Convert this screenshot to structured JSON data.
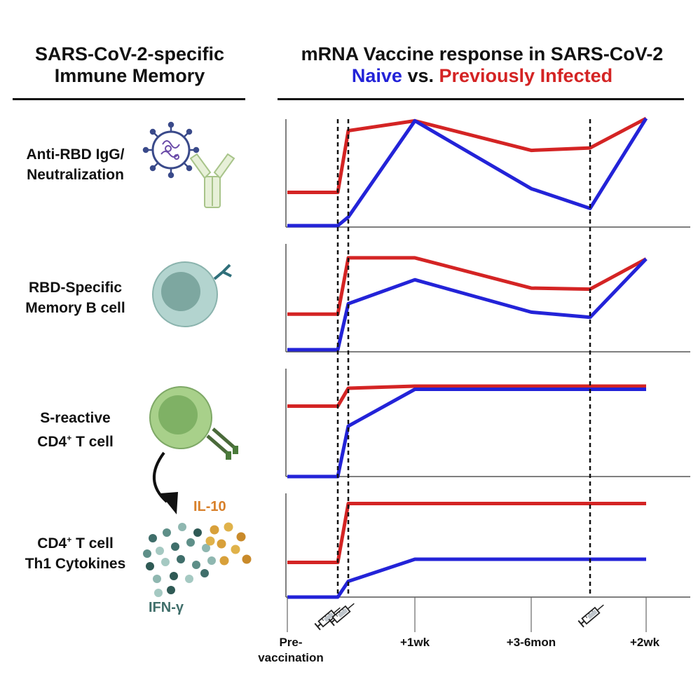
{
  "header": {
    "left_title_line1": "SARS-CoV-2-specific",
    "left_title_line2": "Immune Memory",
    "right_title": "mRNA Vaccine response in SARS-CoV-2",
    "naive": "Naive",
    "vs": " vs. ",
    "previously_infected": "Previously Infected"
  },
  "rows": [
    {
      "line1": "Anti-RBD IgG/",
      "line2": "Neutralization"
    },
    {
      "line1": "RBD-Specific",
      "line2": "Memory B cell"
    },
    {
      "line1": "S-reactive",
      "line2": "CD4",
      "line2_sup": "+",
      "line2_rest": " T cell"
    },
    {
      "line1": "CD4",
      "line1_sup": "+",
      "line1_rest": " T cell",
      "line2": "Th1 Cytokines"
    }
  ],
  "cytokines": {
    "il10": "IL-10",
    "ifng": "IFN-γ"
  },
  "x_ticks": {
    "pre_line1": "Pre-",
    "pre_line2": "vaccination",
    "wk1": "+1wk",
    "mon": "+3-6mon",
    "wk2": "+2wk"
  },
  "colors": {
    "naive": "#2323d8",
    "previously_infected": "#d42424",
    "il10": "#d8802a",
    "ifng": "#3f6e6a"
  },
  "icons": [
    "virus-icon",
    "antibody-icon",
    "memory-b-cell-icon",
    "t-cell-icon",
    "arrow-icon",
    "cytokine-dots-icon",
    "syringe-icon"
  ],
  "chart_data": {
    "type": "line",
    "x": [
      "Pre-vaccination",
      "dose 1",
      "dose 2",
      "+1wk",
      "+3-6mon",
      "booster",
      "+2wk"
    ],
    "dose_markers": [
      "dose 1",
      "dose 2",
      "booster"
    ],
    "panels": [
      {
        "name": "Anti-RBD IgG/Neutralization",
        "series": [
          {
            "name": "Previously Infected",
            "values": [
              0.27,
              0.27,
              0.77,
              0.85,
              0.61,
              0.63,
              0.87
            ]
          },
          {
            "name": "Naive",
            "values": [
              0.0,
              0.0,
              0.07,
              0.85,
              0.3,
              0.14,
              0.87
            ]
          }
        ]
      },
      {
        "name": "RBD-Specific Memory B cell",
        "series": [
          {
            "name": "Previously Infected",
            "values": [
              0.34,
              0.34,
              0.88,
              0.88,
              0.59,
              0.58,
              0.87
            ]
          },
          {
            "name": "Naive",
            "values": [
              0.0,
              0.0,
              0.44,
              0.67,
              0.36,
              0.31,
              0.87
            ]
          }
        ]
      },
      {
        "name": "S-reactive CD4+ T cell",
        "series": [
          {
            "name": "Previously Infected",
            "values": [
              0.67,
              0.67,
              0.84,
              0.86,
              0.86,
              0.86,
              0.86
            ]
          },
          {
            "name": "Naive",
            "values": [
              0.0,
              0.0,
              0.48,
              0.83,
              0.83,
              0.83,
              0.83
            ]
          }
        ]
      },
      {
        "name": "CD4+ T cell Th1 Cytokines",
        "series": [
          {
            "name": "Previously Infected",
            "values": [
              0.33,
              0.33,
              0.89,
              0.89,
              0.89,
              0.89,
              0.89
            ]
          },
          {
            "name": "Naive",
            "values": [
              0.0,
              0.0,
              0.15,
              0.36,
              0.36,
              0.36,
              0.36
            ]
          }
        ]
      }
    ]
  }
}
